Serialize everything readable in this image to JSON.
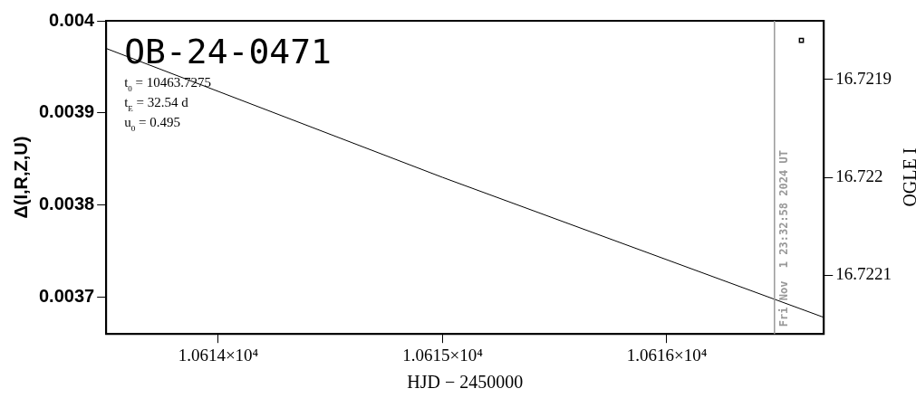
{
  "chart_data": {
    "type": "line",
    "title": "OB-24-0471",
    "xlabel": "HJD − 2450000",
    "ylabel": "Δ(I,R,Z,U)",
    "y2label": "OGLE I",
    "annotations": [
      "t$_{0}$ = 10463.7275",
      "t$_{E}$ = 32.54 d",
      "u$_{0}$ = 0.495",
      {
        "text": "Fri Nov  1 23:32:58 2024 UT",
        "x": 10616.48
      }
    ],
    "series": [
      {
        "type": "line",
        "color": "#000000",
        "x": [
          10613.5,
          10615,
          10616.7
        ],
        "values": [
          0.00397,
          0.00383,
          0.003678
        ],
        "marker": "none"
      },
      {
        "type": "scatter",
        "axis": "y2",
        "color": "#000000",
        "x": [
          10616.6
        ],
        "values": [
          16.72186
        ],
        "marker": "square"
      }
    ],
    "xlim": [
      10613.5,
      10616.7
    ],
    "xticks": [
      {
        "value": 10614,
        "label": "1.0614×10⁴"
      },
      {
        "value": 10615,
        "label": "1.0615×10⁴"
      },
      {
        "value": 10616,
        "label": "1.0616×10⁴"
      }
    ],
    "ylim": [
      0.00366,
      0.004
    ],
    "yticks": [
      0.0037,
      0.0038,
      0.0039,
      0.004
    ],
    "y2lim": [
      16.72216,
      16.72184
    ],
    "y2ticks": [
      16.7219,
      16.722,
      16.7221
    ],
    "ref_lines": [
      {
        "axis": "x",
        "value": 10616.48,
        "color": "#999999"
      }
    ],
    "grid": false,
    "legend": false
  }
}
